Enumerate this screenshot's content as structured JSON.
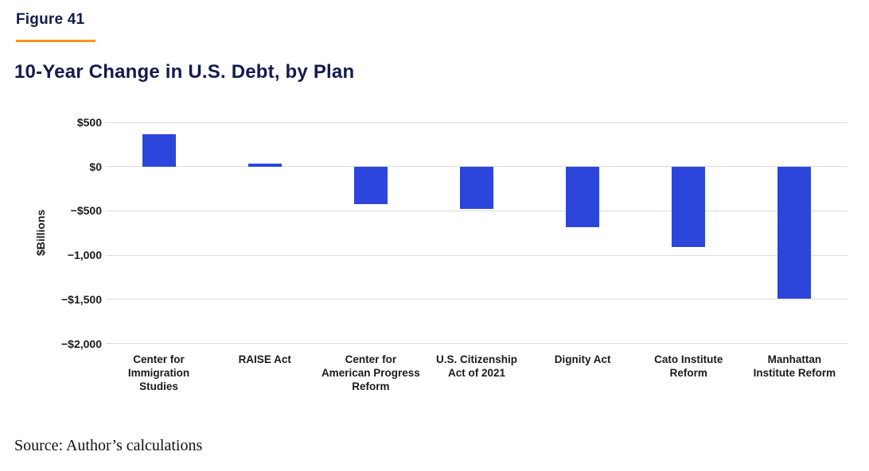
{
  "figure_label": "Figure 41",
  "title": "10-Year Change in U.S. Debt, by Plan",
  "source_note": "Source: Author’s calculations",
  "colors": {
    "bar": "#2C46DB",
    "accent_orange": "#F7941E",
    "heading_navy": "#141B4D",
    "gridline": "#DBDBDB",
    "axis_text": "#1A1A1A"
  },
  "chart_data": {
    "type": "bar",
    "title": "10-Year Change in U.S. Debt, by Plan",
    "ylabel": "$Billions",
    "xlabel": "",
    "units": "billions of U.S. dollars",
    "categories": [
      "Center for Immigration Studies",
      "RAISE Act",
      "Center for American Progress Reform",
      "U.S. Citizenship Act of 2021",
      "Dignity Act",
      "Cato Institute Reform",
      "Manhattan Institute Reform"
    ],
    "category_lines": [
      "Center for\nImmigration\nStudies",
      "RAISE Act",
      "Center for\nAmerican Progress\nReform",
      "U.S. Citizenship\nAct of 2021",
      "Dignity Act",
      "Cato Institute\nReform",
      "Manhattan\nInstitute Reform"
    ],
    "values": [
      365,
      35,
      -425,
      -480,
      -680,
      -905,
      -1490
    ],
    "ylim": [
      -2000,
      500
    ],
    "yticks": [
      {
        "value": 500,
        "label": "$500"
      },
      {
        "value": 0,
        "label": "$0"
      },
      {
        "value": -500,
        "label": "−$500"
      },
      {
        "value": -1000,
        "label": "−1,000"
      },
      {
        "value": -1500,
        "label": "−$1,500"
      },
      {
        "value": -2000,
        "label": "−$2,000"
      }
    ],
    "grid": true,
    "legend": "none",
    "bar_color": "#2C46DB"
  }
}
